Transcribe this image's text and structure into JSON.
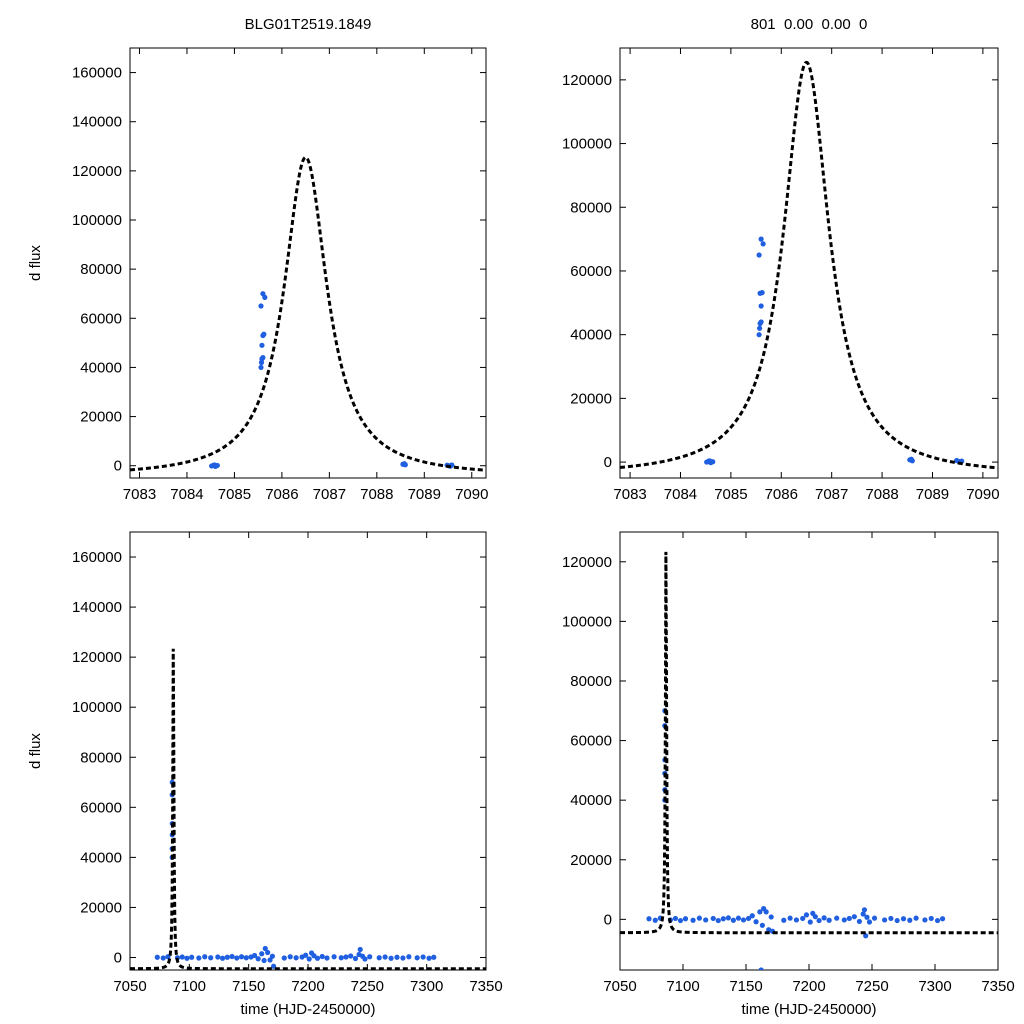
{
  "figure": {
    "shared_xlabel": "time (HJD-2450000)",
    "shared_ylabel": "d flux",
    "model_color": "#000000",
    "data_color": "#1f5fe0"
  },
  "chart_data": [
    {
      "id": "p1",
      "type": "scatter",
      "title": "BLG01T2519.1849",
      "xlabel": "",
      "ylabel": "d flux",
      "xlim": [
        7082.8,
        7090.3
      ],
      "ylim": [
        -5000,
        170000
      ],
      "xticks": [
        7083,
        7084,
        7085,
        7086,
        7087,
        7088,
        7089,
        7090
      ],
      "yticks": [
        0,
        20000,
        40000,
        60000,
        80000,
        100000,
        120000,
        140000,
        160000
      ],
      "model": {
        "t0": 7086.5,
        "peak": 130000,
        "tau": 0.55,
        "style": "dashed",
        "color": "#000000"
      },
      "series": [
        {
          "values": [
            [
              7084.52,
              -100
            ],
            [
              7084.56,
              200
            ],
            [
              7084.6,
              -300
            ],
            [
              7084.64,
              100
            ],
            [
              7084.58,
              300
            ],
            [
              7085.56,
              40000
            ],
            [
              7085.57,
              42000
            ],
            [
              7085.58,
              43500
            ],
            [
              7085.6,
              44000
            ],
            [
              7085.58,
              49000
            ],
            [
              7085.6,
              53000
            ],
            [
              7085.56,
              65000
            ],
            [
              7085.6,
              70000
            ],
            [
              7085.64,
              68500
            ],
            [
              7085.62,
              53500
            ],
            [
              7088.55,
              600
            ],
            [
              7088.58,
              800
            ],
            [
              7088.6,
              400
            ],
            [
              7089.48,
              200
            ],
            [
              7089.52,
              0
            ],
            [
              7089.55,
              -200
            ],
            [
              7089.58,
              300
            ]
          ]
        }
      ]
    },
    {
      "id": "p2",
      "type": "scatter",
      "title": "801  0.00  0.00  0",
      "xlabel": "",
      "ylabel": "",
      "xlim": [
        7082.8,
        7090.3
      ],
      "ylim": [
        -5000,
        130000
      ],
      "xticks": [
        7083,
        7084,
        7085,
        7086,
        7087,
        7088,
        7089,
        7090
      ],
      "yticks": [
        0,
        20000,
        40000,
        60000,
        80000,
        100000,
        120000
      ],
      "model": {
        "t0": 7086.5,
        "peak": 130000,
        "tau": 0.55,
        "style": "dashed",
        "color": "#000000"
      },
      "series": [
        {
          "values": [
            [
              7084.52,
              0
            ],
            [
              7084.56,
              300
            ],
            [
              7084.6,
              -200
            ],
            [
              7084.64,
              100
            ],
            [
              7084.58,
              400
            ],
            [
              7085.56,
              40000
            ],
            [
              7085.57,
              42000
            ],
            [
              7085.58,
              43500
            ],
            [
              7085.6,
              44000
            ],
            [
              7085.6,
              49000
            ],
            [
              7085.58,
              53000
            ],
            [
              7085.56,
              65000
            ],
            [
              7085.6,
              70000
            ],
            [
              7085.64,
              68500
            ],
            [
              7085.62,
              53200
            ],
            [
              7088.55,
              700
            ],
            [
              7088.58,
              900
            ],
            [
              7088.6,
              400
            ],
            [
              7089.48,
              500
            ],
            [
              7089.52,
              200
            ],
            [
              7089.55,
              100
            ],
            [
              7089.58,
              300
            ]
          ]
        }
      ]
    },
    {
      "id": "p3",
      "type": "scatter",
      "title": "",
      "xlabel": "time (HJD-2450000)",
      "ylabel": "d flux",
      "xlim": [
        7050,
        7350
      ],
      "ylim": [
        -5000,
        170000
      ],
      "xticks": [
        7050,
        7100,
        7150,
        7200,
        7250,
        7300,
        7350
      ],
      "yticks": [
        0,
        20000,
        40000,
        60000,
        80000,
        100000,
        120000,
        140000,
        160000
      ],
      "model": {
        "t0": 7086.5,
        "peak": 130000,
        "tau": 0.55,
        "style": "dashed",
        "color": "#000000"
      },
      "series": [
        {
          "values": [
            [
              7085.56,
              40000
            ],
            [
              7085.58,
              43500
            ],
            [
              7085.6,
              49000
            ],
            [
              7085.56,
              65000
            ],
            [
              7085.6,
              70000
            ],
            [
              7085.62,
              53500
            ],
            [
              7073,
              100
            ],
            [
              7078,
              -200
            ],
            [
              7082,
              300
            ],
            [
              7090,
              -100
            ],
            [
              7094,
              200
            ],
            [
              7098,
              -300
            ],
            [
              7102,
              100
            ],
            [
              7108,
              -200
            ],
            [
              7113,
              300
            ],
            [
              7118,
              -100
            ],
            [
              7124,
              200
            ],
            [
              7128,
              -300
            ],
            [
              7132,
              100
            ],
            [
              7136,
              400
            ],
            [
              7140,
              -200
            ],
            [
              7144,
              300
            ],
            [
              7148,
              -100
            ],
            [
              7152,
              200
            ],
            [
              7155,
              800
            ],
            [
              7158,
              -500
            ],
            [
              7161,
              1500
            ],
            [
              7163,
              -1200
            ],
            [
              7164,
              3600
            ],
            [
              7166,
              2000
            ],
            [
              7168,
              -1000
            ],
            [
              7170,
              500
            ],
            [
              7171,
              -3500
            ],
            [
              7180,
              -200
            ],
            [
              7185,
              300
            ],
            [
              7190,
              -100
            ],
            [
              7195,
              200
            ],
            [
              7198,
              900
            ],
            [
              7201,
              -600
            ],
            [
              7203,
              1800
            ],
            [
              7205,
              700
            ],
            [
              7208,
              -300
            ],
            [
              7212,
              400
            ],
            [
              7216,
              -200
            ],
            [
              7222,
              300
            ],
            [
              7228,
              -100
            ],
            [
              7232,
              200
            ],
            [
              7236,
              600
            ],
            [
              7240,
              -400
            ],
            [
              7243,
              1200
            ],
            [
              7244,
              3200
            ],
            [
              7246,
              500
            ],
            [
              7248,
              -600
            ],
            [
              7252,
              300
            ],
            [
              7260,
              -100
            ],
            [
              7265,
              200
            ],
            [
              7270,
              -300
            ],
            [
              7275,
              100
            ],
            [
              7280,
              -200
            ],
            [
              7285,
              300
            ],
            [
              7292,
              -100
            ],
            [
              7297,
              200
            ],
            [
              7302,
              -300
            ],
            [
              7306,
              100
            ]
          ]
        }
      ]
    },
    {
      "id": "p4",
      "type": "scatter",
      "title": "",
      "xlabel": "time (HJD-2450000)",
      "ylabel": "",
      "xlim": [
        7050,
        7350
      ],
      "ylim": [
        -17000,
        130000
      ],
      "xticks": [
        7050,
        7100,
        7150,
        7200,
        7250,
        7300,
        7350
      ],
      "yticks": [
        0,
        20000,
        40000,
        60000,
        80000,
        100000,
        120000
      ],
      "model": {
        "t0": 7086.5,
        "peak": 130000,
        "tau": 0.55,
        "style": "dashed",
        "color": "#000000"
      },
      "series": [
        {
          "values": [
            [
              7085.56,
              40000
            ],
            [
              7085.58,
              43500
            ],
            [
              7085.6,
              49000
            ],
            [
              7085.56,
              65000
            ],
            [
              7085.6,
              70000
            ],
            [
              7085.62,
              53500
            ],
            [
              7073,
              200
            ],
            [
              7078,
              -300
            ],
            [
              7082,
              400
            ],
            [
              7090,
              -200
            ],
            [
              7094,
              300
            ],
            [
              7098,
              -400
            ],
            [
              7102,
              200
            ],
            [
              7108,
              -300
            ],
            [
              7113,
              400
            ],
            [
              7118,
              -200
            ],
            [
              7124,
              300
            ],
            [
              7128,
              -400
            ],
            [
              7132,
              200
            ],
            [
              7136,
              500
            ],
            [
              7140,
              -300
            ],
            [
              7144,
              400
            ],
            [
              7148,
              -200
            ],
            [
              7152,
              300
            ],
            [
              7155,
              1200
            ],
            [
              7158,
              -800
            ],
            [
              7161,
              2500
            ],
            [
              7162,
              -17000
            ],
            [
              7163,
              -2000
            ],
            [
              7164,
              3600
            ],
            [
              7166,
              2500
            ],
            [
              7168,
              -3500
            ],
            [
              7170,
              800
            ],
            [
              7171,
              -4000
            ],
            [
              7180,
              -300
            ],
            [
              7185,
              400
            ],
            [
              7190,
              -200
            ],
            [
              7195,
              300
            ],
            [
              7198,
              1500
            ],
            [
              7201,
              -900
            ],
            [
              7203,
              2000
            ],
            [
              7205,
              900
            ],
            [
              7208,
              -400
            ],
            [
              7212,
              500
            ],
            [
              7216,
              -300
            ],
            [
              7222,
              400
            ],
            [
              7228,
              -200
            ],
            [
              7232,
              300
            ],
            [
              7236,
              900
            ],
            [
              7240,
              -700
            ],
            [
              7243,
              1800
            ],
            [
              7244,
              3200
            ],
            [
              7245,
              -5500
            ],
            [
              7246,
              700
            ],
            [
              7248,
              -900
            ],
            [
              7252,
              400
            ],
            [
              7260,
              -200
            ],
            [
              7265,
              300
            ],
            [
              7270,
              -400
            ],
            [
              7275,
              200
            ],
            [
              7280,
              -300
            ],
            [
              7285,
              400
            ],
            [
              7292,
              -200
            ],
            [
              7297,
              300
            ],
            [
              7302,
              -400
            ],
            [
              7306,
              200
            ]
          ]
        }
      ]
    }
  ]
}
